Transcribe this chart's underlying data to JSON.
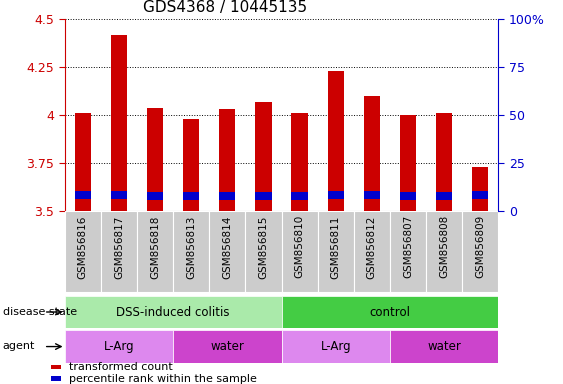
{
  "title": "GDS4368 / 10445135",
  "samples": [
    "GSM856816",
    "GSM856817",
    "GSM856818",
    "GSM856813",
    "GSM856814",
    "GSM856815",
    "GSM856810",
    "GSM856811",
    "GSM856812",
    "GSM856807",
    "GSM856808",
    "GSM856809"
  ],
  "transformed_count": [
    4.01,
    4.42,
    4.04,
    3.98,
    4.03,
    4.07,
    4.01,
    4.23,
    4.1,
    4.0,
    4.01,
    3.73
  ],
  "percentile_bottom": [
    3.565,
    3.565,
    3.558,
    3.558,
    3.558,
    3.558,
    3.558,
    3.565,
    3.565,
    3.558,
    3.558,
    3.565
  ],
  "percentile_height": [
    0.04,
    0.04,
    0.04,
    0.04,
    0.04,
    0.04,
    0.04,
    0.04,
    0.04,
    0.04,
    0.04,
    0.04
  ],
  "ymin": 3.5,
  "ymax": 4.5,
  "yticks": [
    3.5,
    3.75,
    4.0,
    4.25,
    4.5
  ],
  "ytick_labels_left": [
    "3.5",
    "3.75",
    "4",
    "4.25",
    "4.5"
  ],
  "right_axis_ticks": [
    0,
    25,
    50,
    75,
    100
  ],
  "right_axis_labels": [
    "0",
    "25",
    "50",
    "75",
    "100%"
  ],
  "bar_color": "#cc0000",
  "percentile_color": "#0000cc",
  "bar_width": 0.45,
  "disease_state_groups": [
    {
      "label": "DSS-induced colitis",
      "start": 0,
      "end": 6,
      "color": "#aaeaaa"
    },
    {
      "label": "control",
      "start": 6,
      "end": 12,
      "color": "#44cc44"
    }
  ],
  "agent_groups": [
    {
      "label": "L-Arg",
      "start": 0,
      "end": 3,
      "color": "#dd88ee"
    },
    {
      "label": "water",
      "start": 3,
      "end": 6,
      "color": "#cc44cc"
    },
    {
      "label": "L-Arg",
      "start": 6,
      "end": 9,
      "color": "#dd88ee"
    },
    {
      "label": "water",
      "start": 9,
      "end": 12,
      "color": "#cc44cc"
    }
  ],
  "legend_items": [
    {
      "label": "transformed count",
      "color": "#cc0000"
    },
    {
      "label": "percentile rank within the sample",
      "color": "#0000cc"
    }
  ],
  "left_axis_color": "#cc0000",
  "right_axis_color": "#0000cc",
  "xtick_bg_color": "#cccccc",
  "fig_width": 5.63,
  "fig_height": 3.84,
  "fig_dpi": 100
}
